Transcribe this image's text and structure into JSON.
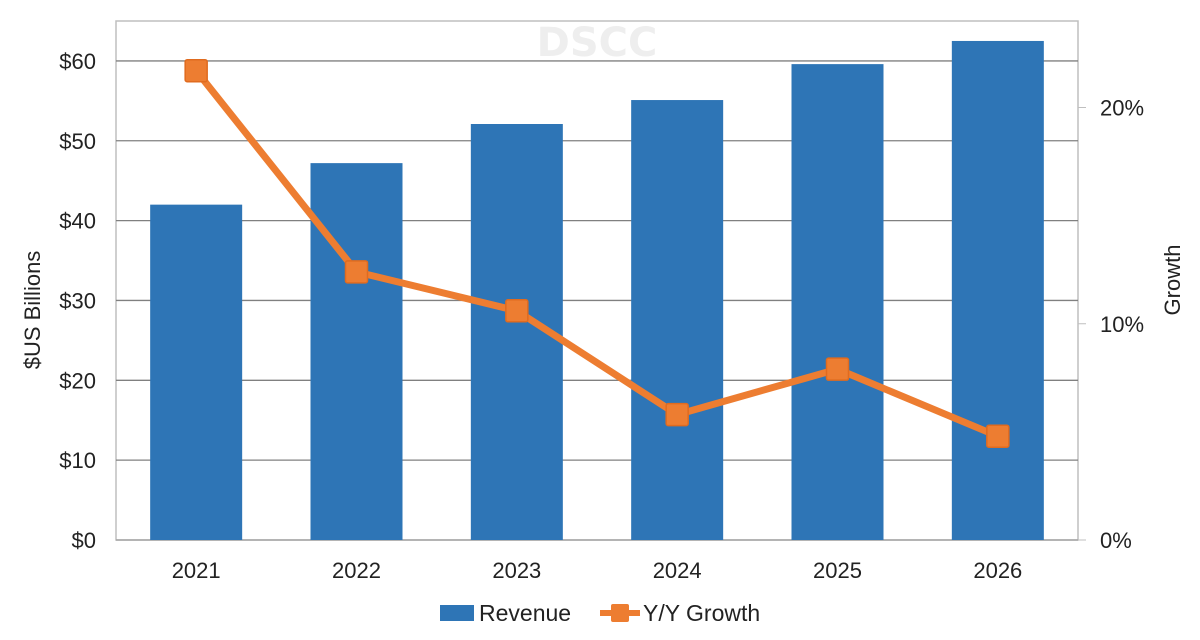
{
  "chart_data": {
    "type": "bar",
    "title": "",
    "watermark": "DSCC",
    "categories": [
      "2021",
      "2022",
      "2023",
      "2024",
      "2025",
      "2026"
    ],
    "series": [
      {
        "name": "Revenue",
        "type": "bar",
        "axis": "left",
        "color": "#2E75B6",
        "values": [
          42.0,
          47.2,
          52.1,
          55.1,
          59.6,
          62.5
        ]
      },
      {
        "name": "Y/Y Growth",
        "type": "line",
        "axis": "right",
        "color": "#ED7D31",
        "marker": "square",
        "values": [
          21.7,
          12.4,
          10.6,
          5.8,
          7.9,
          4.8
        ]
      }
    ],
    "ylabel": "$US Billions",
    "y2label": "Growth",
    "xlabel": "",
    "ylim": [
      0,
      65
    ],
    "y2lim": [
      0,
      24
    ],
    "yticks": [
      0,
      10,
      20,
      30,
      40,
      50,
      60
    ],
    "ytick_labels": [
      "$0",
      "$10",
      "$20",
      "$30",
      "$40",
      "$50",
      "$60"
    ],
    "y2ticks": [
      0,
      10,
      20
    ],
    "y2tick_labels": [
      "0%",
      "10%",
      "20%"
    ],
    "grid": true,
    "legend": {
      "position": "bottom",
      "entries": [
        "Revenue",
        "Y/Y Growth"
      ]
    }
  }
}
